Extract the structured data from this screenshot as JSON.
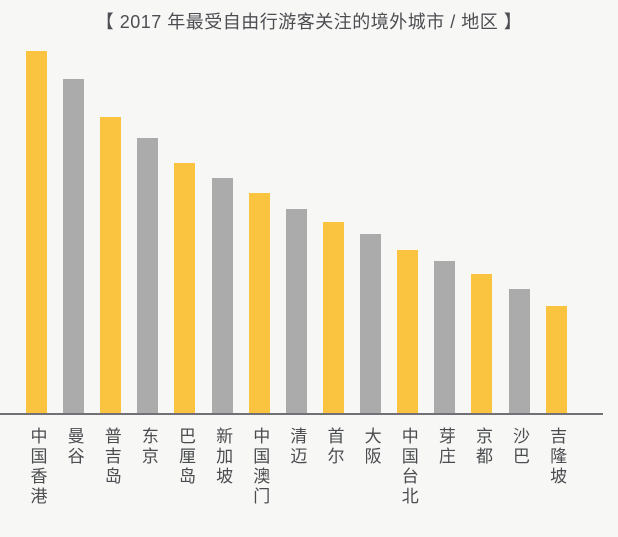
{
  "title": "【 2017 年最受自由行游客关注的境外城市 / 地区 】",
  "colors": {
    "background": "#F7F7F5",
    "bar_yellow": "#FBC440",
    "bar_gray": "#ABABAB",
    "text": "#4D4E52",
    "axis_line": "#707176"
  },
  "chart_data": {
    "type": "bar",
    "title": "【 2017 年最受自由行游客关注的境外城市 / 地区 】",
    "categories": [
      "中国香港",
      "曼谷",
      "普吉岛",
      "东京",
      "巴厘岛",
      "新加坡",
      "中国澳门",
      "清迈",
      "首尔",
      "大阪",
      "中国台北",
      "芽庄",
      "京都",
      "沙巴",
      "吉隆坡"
    ],
    "values": [
      100,
      92.3,
      81.8,
      76,
      69.1,
      64.9,
      60.8,
      56.4,
      52.8,
      49.4,
      45,
      42,
      38.4,
      34.3,
      29.6
    ],
    "value_note": "relative bar heights as % of tallest bar; no numeric axis, gridlines or data labels are shown in the chart",
    "bar_colors_alternate": [
      "#FBC440",
      "#ABABAB"
    ],
    "xlabel": "",
    "ylabel": "",
    "grid": false,
    "legend": null,
    "x_tick_label_orientation": "vertical-upright"
  }
}
